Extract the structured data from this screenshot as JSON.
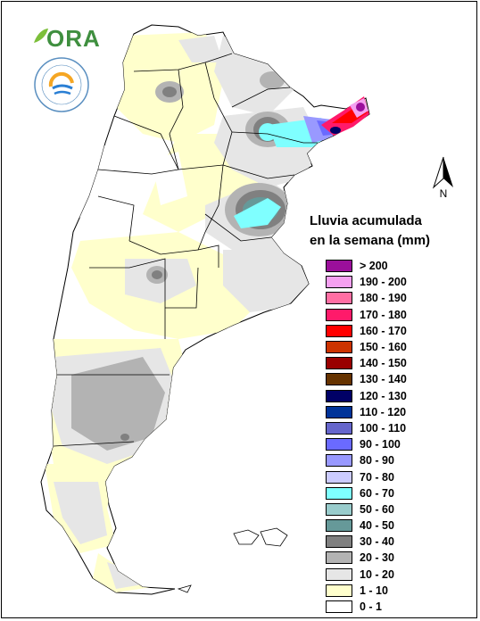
{
  "logo": {
    "text": "ORA",
    "seal_text": "SERVICIO METEOROLÓGICO NACIONAL · ARGENTINA"
  },
  "compass": {
    "label": "N"
  },
  "legend": {
    "title_line1": "Lluvia acumulada",
    "title_line2": "en la semana (mm)",
    "items": [
      {
        "label": "> 200",
        "color": "#9b0f9b"
      },
      {
        "label": "190 - 200",
        "color": "#f5a0f0"
      },
      {
        "label": "180 - 190",
        "color": "#ff6fa3"
      },
      {
        "label": "170 - 180",
        "color": "#ff1a6a"
      },
      {
        "label": "160 - 170",
        "color": "#ff0000"
      },
      {
        "label": "150 - 160",
        "color": "#cc3300"
      },
      {
        "label": "140 - 150",
        "color": "#990000"
      },
      {
        "label": "130 - 140",
        "color": "#663300"
      },
      {
        "label": "120 - 130",
        "color": "#000066"
      },
      {
        "label": "110 - 120",
        "color": "#003399"
      },
      {
        "label": "100 - 110",
        "color": "#6666cc"
      },
      {
        "label": "90 - 100",
        "color": "#6a6aff"
      },
      {
        "label": "80 - 90",
        "color": "#9999ff"
      },
      {
        "label": "70 - 80",
        "color": "#ccccff"
      },
      {
        "label": "60 - 70",
        "color": "#7fffff"
      },
      {
        "label": "50 - 60",
        "color": "#99cccc"
      },
      {
        "label": "40 - 50",
        "color": "#669999"
      },
      {
        "label": "30 - 40",
        "color": "#808080"
      },
      {
        "label": "20 - 30",
        "color": "#b3b3b3"
      },
      {
        "label": "10 - 20",
        "color": "#e6e6e6"
      },
      {
        "label": "1 - 10",
        "color": "#ffffcc"
      },
      {
        "label": "0 - 1",
        "color": "#ffffff"
      }
    ]
  }
}
